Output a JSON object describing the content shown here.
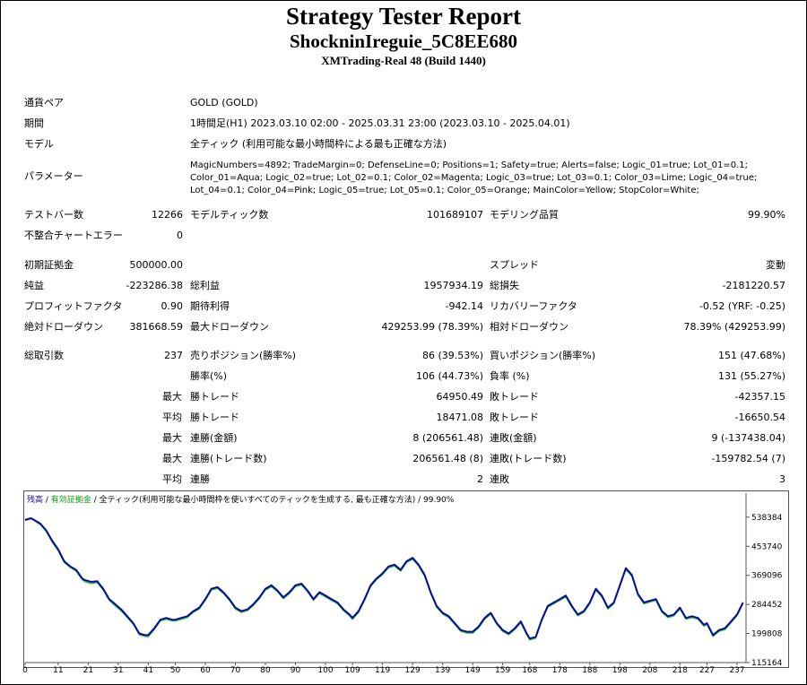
{
  "report": {
    "title": "Strategy Tester Report",
    "ea_name": "ShockninIreguie_5C8EE680",
    "server": "XMTrading-Real 48 (Build 1440)"
  },
  "info": {
    "symbol_label": "通貨ペア",
    "symbol_value": "GOLD (GOLD)",
    "period_label": "期間",
    "period_value": "1時間足(H1) 2023.03.10 02:00 - 2025.03.31 23:00 (2023.03.10 - 2025.04.01)",
    "model_label": "モデル",
    "model_value": "全ティック (利用可能な最小時間枠による最も正確な方法)",
    "params_label": "パラメーター",
    "params_value": "MagicNumbers=4892; TradeMargin=0; DefenseLine=0; Positions=1; Safety=true; Alerts=false; Logic_01=true; Lot_01=0.1; Color_01=Aqua; Logic_02=true; Lot_02=0.1; Color_02=Magenta; Logic_03=true; Lot_03=0.1; Color_03=Lime; Logic_04=true; Lot_04=0.1; Color_04=Pink; Logic_05=true; Lot_05=0.1; Color_05=Orange; MainColor=Yellow; StopColor=White;"
  },
  "stats": {
    "bars_label": "テストバー数",
    "bars_value": "12266",
    "ticks_label": "モデルティック数",
    "ticks_value": "101689107",
    "quality_label": "モデリング品質",
    "quality_value": "99.90%",
    "mismatch_label": "不整合チャートエラー",
    "mismatch_value": "0",
    "deposit_label": "初期証拠金",
    "deposit_value": "500000.00",
    "spread_label": "スプレッド",
    "spread_value": "変動",
    "net_label": "純益",
    "net_value": "-223286.38",
    "gross_profit_label": "総利益",
    "gross_profit_value": "1957934.19",
    "gross_loss_label": "総損失",
    "gross_loss_value": "-2181220.57",
    "pf_label": "プロフィットファクタ",
    "pf_value": "0.90",
    "payoff_label": "期待利得",
    "payoff_value": "-942.14",
    "recovery_label": "リカバリーファクタ",
    "recovery_value": "-0.52 (YRF: -0.25)",
    "abs_dd_label": "絶対ドローダウン",
    "abs_dd_value": "381668.59",
    "max_dd_label": "最大ドローダウン",
    "max_dd_value": "429253.99 (78.39%)",
    "rel_dd_label": "相対ドローダウン",
    "rel_dd_value": "78.39% (429253.99)",
    "trades_label": "総取引数",
    "trades_value": "237",
    "short_label": "売りポジション(勝率%)",
    "short_value": "86 (39.53%)",
    "long_label": "買いポジション(勝率%)",
    "long_value": "151 (47.68%)",
    "winrate_label": "勝率(%)",
    "winrate_value": "106 (44.73%)",
    "lossrate_label": "負率 (%)",
    "lossrate_value": "131 (55.27%)",
    "max_prefix": "最大",
    "avg_prefix": "平均",
    "largest_win_label": "勝トレード",
    "largest_win_value": "64950.49",
    "largest_loss_label": "敗トレード",
    "largest_loss_value": "-42357.15",
    "avg_win_label": "勝トレード",
    "avg_win_value": "18471.08",
    "avg_loss_label": "敗トレード",
    "avg_loss_value": "-16650.54",
    "max_cons_wins_label": "連勝(金額)",
    "max_cons_wins_value": "8 (206561.48)",
    "max_cons_losses_label": "連敗(金額)",
    "max_cons_losses_value": "9 (-137438.04)",
    "max_cons_profit_label": "連勝(トレード数)",
    "max_cons_profit_value": "206561.48 (8)",
    "max_cons_loss_label": "連敗(トレード数)",
    "max_cons_loss_value": "-159782.54 (7)",
    "avg_cons_wins_label": "連勝",
    "avg_cons_wins_value": "2",
    "avg_cons_losses_label": "連敗",
    "avg_cons_losses_value": "3"
  },
  "chart_legend": {
    "balance": "残高",
    "sep1": " / ",
    "equity": "有効証拠金",
    "sep2": " / ",
    "model": "全ティック(利用可能な最小時間枠を使いすべてのティックを生成する, 最も正確な方法)",
    "sep3": " / ",
    "quality": "99.90%"
  },
  "colors": {
    "balance": "#0a0aa0",
    "equity": "#1fbf1f"
  },
  "chart_data": {
    "type": "line",
    "x_ticks": [
      "0",
      "11",
      "21",
      "31",
      "41",
      "50",
      "60",
      "70",
      "80",
      "90",
      "100",
      "109",
      "119",
      "129",
      "139",
      "149",
      "159",
      "168",
      "178",
      "188",
      "198",
      "208",
      "218",
      "227",
      "237"
    ],
    "y_ticks": [
      "538384",
      "453740",
      "369096",
      "284452",
      "199808",
      "115164"
    ],
    "xlim": [
      0,
      240
    ],
    "ylim": [
      115164,
      566600
    ],
    "series": [
      {
        "x": [
          0,
          2,
          4,
          5,
          7,
          9,
          11,
          13,
          15,
          17,
          19,
          20,
          22,
          24,
          26,
          28,
          30,
          32,
          34,
          36,
          38,
          40,
          41,
          43,
          45,
          47,
          49,
          50,
          52,
          54,
          56,
          58,
          60,
          62,
          64,
          66,
          68,
          70,
          72,
          74,
          76,
          78,
          80,
          82,
          84,
          86,
          88,
          90,
          92,
          94,
          96,
          98,
          100,
          102,
          104,
          106,
          108,
          109,
          111,
          113,
          115,
          117,
          119,
          121,
          123,
          125,
          127,
          129,
          131,
          133,
          135,
          137,
          139,
          141,
          143,
          145,
          147,
          149,
          151,
          153,
          155,
          157,
          159,
          161,
          163,
          165,
          167,
          168,
          170,
          172,
          174,
          176,
          178,
          180,
          182,
          184,
          186,
          188,
          190,
          192,
          194,
          196,
          198,
          200,
          202,
          204,
          206,
          208,
          210,
          212,
          214,
          216,
          218,
          220,
          222,
          224,
          226,
          227,
          229,
          231,
          233,
          235,
          237,
          239
        ],
        "values": [
          530000,
          535000,
          525000,
          520000,
          500000,
          470000,
          445000,
          410000,
          395000,
          385000,
          360000,
          355000,
          350000,
          352000,
          330000,
          300000,
          285000,
          270000,
          250000,
          230000,
          200000,
          195000,
          195000,
          215000,
          240000,
          245000,
          240000,
          240000,
          245000,
          250000,
          265000,
          275000,
          300000,
          330000,
          335000,
          320000,
          300000,
          275000,
          265000,
          270000,
          285000,
          305000,
          330000,
          340000,
          325000,
          305000,
          320000,
          340000,
          345000,
          325000,
          300000,
          320000,
          310000,
          300000,
          290000,
          270000,
          255000,
          245000,
          265000,
          300000,
          340000,
          360000,
          375000,
          395000,
          400000,
          385000,
          410000,
          420000,
          400000,
          370000,
          320000,
          280000,
          260000,
          250000,
          230000,
          210000,
          205000,
          205000,
          220000,
          245000,
          260000,
          230000,
          210000,
          200000,
          215000,
          235000,
          200000,
          185000,
          190000,
          240000,
          280000,
          290000,
          300000,
          310000,
          280000,
          255000,
          265000,
          290000,
          330000,
          310000,
          275000,
          290000,
          340000,
          390000,
          370000,
          315000,
          290000,
          295000,
          300000,
          265000,
          250000,
          255000,
          275000,
          245000,
          250000,
          245000,
          225000,
          230000,
          195000,
          210000,
          215000,
          235000,
          255000,
          290000
        ],
        "color": "#0a0aa0"
      },
      {
        "x": [
          0,
          2,
          4,
          5,
          7,
          9,
          11,
          13,
          15,
          17,
          19,
          20,
          22,
          24,
          26,
          28,
          30,
          32,
          34,
          36,
          38,
          40,
          41,
          43,
          45,
          47,
          49,
          50,
          52,
          54,
          56,
          58,
          60,
          62,
          64,
          66,
          68,
          70,
          72,
          74,
          76,
          78,
          80,
          82,
          84,
          86,
          88,
          90,
          92,
          94,
          96,
          98,
          100,
          102,
          104,
          106,
          108,
          109,
          111,
          113,
          115,
          117,
          119,
          121,
          123,
          125,
          127,
          129,
          131,
          133,
          135,
          137,
          139,
          141,
          143,
          145,
          147,
          149,
          151,
          153,
          155,
          157,
          159,
          161,
          163,
          165,
          167,
          168,
          170,
          172,
          174,
          176,
          178,
          180,
          182,
          184,
          186,
          188,
          190,
          192,
          194,
          196,
          198,
          200,
          202,
          204,
          206,
          208,
          210,
          212,
          214,
          216,
          218,
          220,
          222,
          224,
          226,
          227,
          229,
          231,
          233,
          235,
          237,
          239
        ],
        "values": [
          532000,
          537000,
          522000,
          517000,
          497000,
          466000,
          441000,
          406000,
          392000,
          381000,
          356000,
          350000,
          345000,
          348000,
          326000,
          296000,
          280000,
          265000,
          246000,
          226000,
          196000,
          191000,
          190000,
          211000,
          236000,
          241000,
          236000,
          236000,
          241000,
          246000,
          261000,
          271000,
          296000,
          326000,
          331000,
          316000,
          296000,
          271000,
          261000,
          266000,
          281000,
          301000,
          326000,
          336000,
          321000,
          301000,
          316000,
          336000,
          341000,
          321000,
          296000,
          316000,
          306000,
          296000,
          286000,
          266000,
          251000,
          241000,
          261000,
          296000,
          336000,
          356000,
          371000,
          391000,
          396000,
          381000,
          406000,
          416000,
          396000,
          366000,
          316000,
          276000,
          256000,
          246000,
          226000,
          206000,
          201000,
          201000,
          216000,
          241000,
          256000,
          226000,
          206000,
          196000,
          211000,
          231000,
          196000,
          181000,
          186000,
          236000,
          276000,
          286000,
          296000,
          306000,
          276000,
          251000,
          261000,
          286000,
          326000,
          306000,
          271000,
          286000,
          336000,
          386000,
          366000,
          311000,
          286000,
          291000,
          296000,
          261000,
          246000,
          251000,
          271000,
          241000,
          246000,
          241000,
          221000,
          226000,
          191000,
          206000,
          211000,
          231000,
          251000,
          286000
        ],
        "color": "#1fbf1f"
      }
    ]
  }
}
